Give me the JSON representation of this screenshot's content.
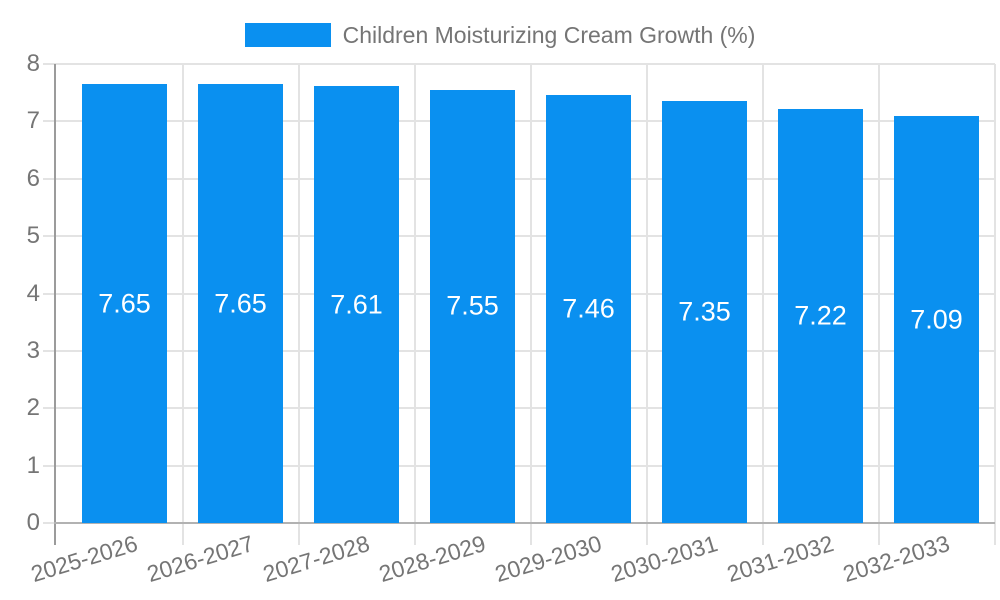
{
  "legend": {
    "label": "Children Moisturizing Cream Growth (%)",
    "swatch_color": "#0a90f0"
  },
  "chart_data": {
    "type": "bar",
    "title": "Children Moisturizing Cream Growth (%)",
    "categories": [
      "2025-2026",
      "2026-2027",
      "2027-2028",
      "2028-2029",
      "2029-2030",
      "2030-2031",
      "2031-2032",
      "2032-2033"
    ],
    "values": [
      7.65,
      7.65,
      7.61,
      7.55,
      7.46,
      7.35,
      7.22,
      7.09
    ],
    "value_labels": [
      "7.65",
      "7.65",
      "7.61",
      "7.55",
      "7.46",
      "7.35",
      "7.22",
      "7.09"
    ],
    "xlabel": "",
    "ylabel": "",
    "ylim": [
      0,
      8
    ],
    "yticks": [
      0,
      1,
      2,
      3,
      4,
      5,
      6,
      7,
      8
    ],
    "grid": true,
    "legend_position": "top",
    "value_label_position": "inside-center",
    "colors": {
      "bar": "#0a90f0",
      "value_text": "#ffffff",
      "axis_text": "#757575",
      "gridline": "#e3e3e3",
      "y_axis_line": "#9b9b9b",
      "baseline": "#b2b2b2"
    }
  }
}
